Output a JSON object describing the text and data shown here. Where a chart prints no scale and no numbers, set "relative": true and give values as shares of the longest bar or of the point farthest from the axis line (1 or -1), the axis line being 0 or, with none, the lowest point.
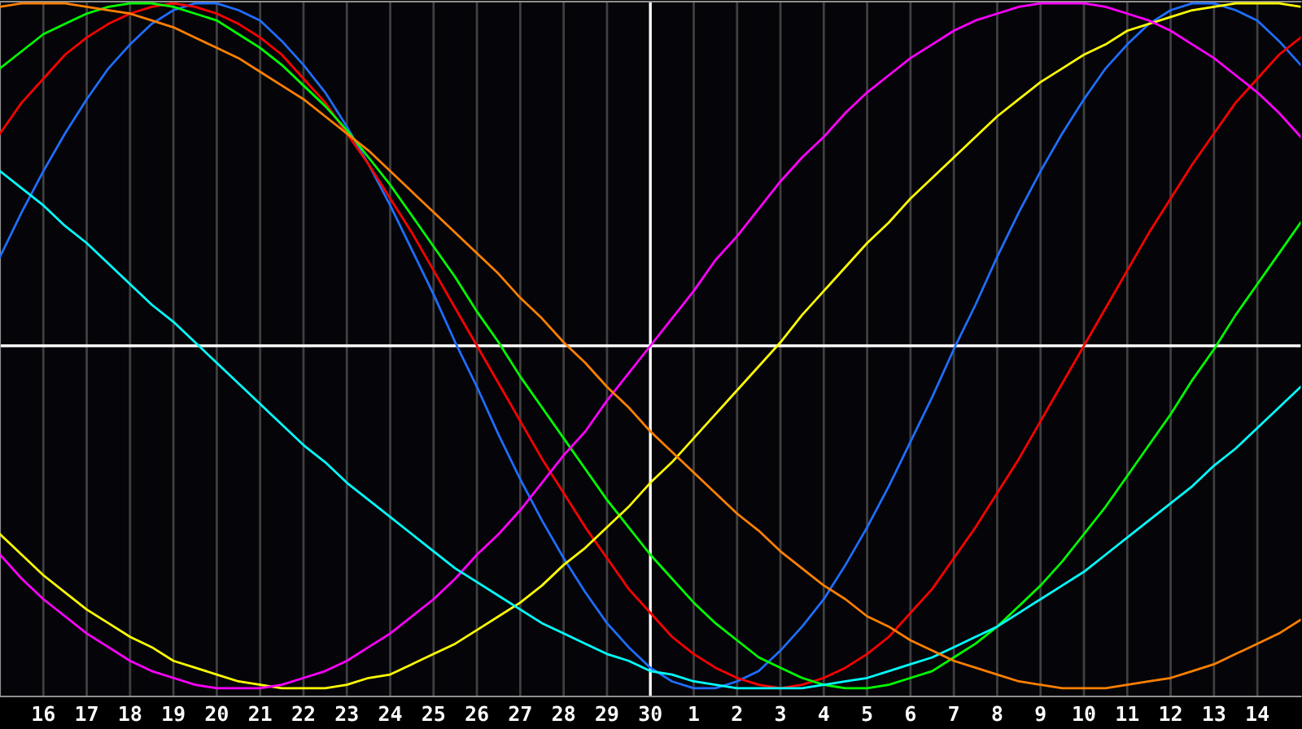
{
  "chart_data": {
    "type": "line",
    "relative": true,
    "grid": "x",
    "legend": false,
    "marker": "none",
    "line_style": "solid",
    "categories": [
      null,
      null,
      "16",
      null,
      "17",
      null,
      "18",
      null,
      "19",
      null,
      "20",
      null,
      "21",
      null,
      "22",
      null,
      "23",
      null,
      "24",
      null,
      "25",
      null,
      "26",
      null,
      "27",
      null,
      "28",
      null,
      "29",
      null,
      "30",
      null,
      "1",
      null,
      "2",
      null,
      "3",
      null,
      "4",
      null,
      "5",
      null,
      "6",
      null,
      "7",
      null,
      "8",
      null,
      "9",
      null,
      "10",
      null,
      "11",
      null,
      "12",
      null,
      "13",
      null,
      "14",
      null,
      null
    ],
    "tick_labels": "x",
    "ref_lines": [
      {
        "axis": "x",
        "value": "30",
        "color": "#ffffff",
        "line_style": "solid"
      },
      {
        "axis": "y",
        "value": 0,
        "color": "#ffffff",
        "line_style": "solid"
      }
    ],
    "series": [
      {
        "color": "#1e6eff",
        "values": [
          0.26,
          0.39,
          0.51,
          0.62,
          0.72,
          0.81,
          0.88,
          0.94,
          0.98,
          1.0,
          1.0,
          0.98,
          0.95,
          0.89,
          0.82,
          0.74,
          0.64,
          0.53,
          0.41,
          0.28,
          0.15,
          0.01,
          -0.12,
          -0.26,
          -0.39,
          -0.51,
          -0.62,
          -0.72,
          -0.81,
          -0.88,
          -0.94,
          -0.98,
          -1.0,
          -1.0,
          -0.98,
          -0.95,
          -0.89,
          -0.82,
          -0.74,
          -0.64,
          -0.53,
          -0.41,
          -0.28,
          -0.15,
          -0.01,
          0.12,
          0.26,
          0.39,
          0.51,
          0.62,
          0.72,
          0.81,
          0.88,
          0.94,
          0.98,
          1.0,
          1.0,
          0.98,
          0.95,
          0.89,
          0.82
        ]
      },
      {
        "color": "#ff0000",
        "values": [
          0.62,
          0.71,
          0.78,
          0.85,
          0.9,
          0.94,
          0.97,
          0.99,
          1.0,
          0.99,
          0.97,
          0.94,
          0.9,
          0.85,
          0.78,
          0.71,
          0.62,
          0.53,
          0.43,
          0.33,
          0.22,
          0.11,
          0.0,
          -0.11,
          -0.22,
          -0.33,
          -0.43,
          -0.53,
          -0.62,
          -0.71,
          -0.78,
          -0.85,
          -0.9,
          -0.94,
          -0.97,
          -0.99,
          -1.0,
          -0.99,
          -0.97,
          -0.94,
          -0.9,
          -0.85,
          -0.78,
          -0.71,
          -0.62,
          -0.53,
          -0.43,
          -0.33,
          -0.22,
          -0.11,
          0.0,
          0.11,
          0.22,
          0.33,
          0.43,
          0.53,
          0.62,
          0.71,
          0.78,
          0.85,
          0.9
        ]
      },
      {
        "color": "#00ff00",
        "values": [
          0.81,
          0.86,
          0.91,
          0.94,
          0.97,
          0.99,
          1.0,
          1.0,
          0.99,
          0.97,
          0.95,
          0.91,
          0.87,
          0.82,
          0.76,
          0.7,
          0.63,
          0.55,
          0.47,
          0.38,
          0.29,
          0.2,
          0.1,
          0.01,
          -0.09,
          -0.18,
          -0.27,
          -0.36,
          -0.45,
          -0.53,
          -0.61,
          -0.68,
          -0.75,
          -0.81,
          -0.86,
          -0.91,
          -0.94,
          -0.97,
          -0.99,
          -1.0,
          -1.0,
          -0.99,
          -0.97,
          -0.95,
          -0.91,
          -0.87,
          -0.82,
          -0.76,
          -0.7,
          -0.63,
          -0.55,
          -0.47,
          -0.38,
          -0.29,
          -0.2,
          -0.1,
          -0.01,
          0.09,
          0.18,
          0.27,
          0.36
        ]
      },
      {
        "color": "#ffff00",
        "values": [
          -0.55,
          -0.61,
          -0.67,
          -0.72,
          -0.77,
          -0.81,
          -0.85,
          -0.88,
          -0.92,
          -0.94,
          -0.96,
          -0.98,
          -0.99,
          -1.0,
          -1.0,
          -1.0,
          -0.99,
          -0.97,
          -0.96,
          -0.93,
          -0.9,
          -0.87,
          -0.83,
          -0.79,
          -0.75,
          -0.7,
          -0.64,
          -0.59,
          -0.53,
          -0.47,
          -0.4,
          -0.34,
          -0.27,
          -0.2,
          -0.13,
          -0.06,
          0.01,
          0.09,
          0.16,
          0.23,
          0.3,
          0.36,
          0.43,
          0.49,
          0.55,
          0.61,
          0.67,
          0.72,
          0.77,
          0.81,
          0.85,
          0.88,
          0.92,
          0.94,
          0.96,
          0.98,
          0.99,
          1.0,
          1.0,
          1.0,
          0.99
        ]
      },
      {
        "color": "#ff00ff",
        "values": [
          -0.61,
          -0.68,
          -0.74,
          -0.79,
          -0.84,
          -0.88,
          -0.92,
          -0.95,
          -0.97,
          -0.99,
          -1.0,
          -1.0,
          -1.0,
          -0.99,
          -0.97,
          -0.95,
          -0.92,
          -0.88,
          -0.84,
          -0.79,
          -0.74,
          -0.68,
          -0.61,
          -0.55,
          -0.48,
          -0.4,
          -0.32,
          -0.25,
          -0.16,
          -0.08,
          0.0,
          0.08,
          0.16,
          0.25,
          0.32,
          0.4,
          0.48,
          0.55,
          0.61,
          0.68,
          0.74,
          0.79,
          0.84,
          0.88,
          0.92,
          0.95,
          0.97,
          0.99,
          1.0,
          1.0,
          1.0,
          0.99,
          0.97,
          0.95,
          0.92,
          0.88,
          0.84,
          0.79,
          0.74,
          0.68,
          0.61
        ]
      },
      {
        "color": "#00ffff",
        "values": [
          0.51,
          0.46,
          0.41,
          0.35,
          0.3,
          0.24,
          0.18,
          0.12,
          0.07,
          0.01,
          -0.05,
          -0.11,
          -0.17,
          -0.23,
          -0.29,
          -0.34,
          -0.4,
          -0.45,
          -0.5,
          -0.55,
          -0.6,
          -0.65,
          -0.69,
          -0.73,
          -0.77,
          -0.81,
          -0.84,
          -0.87,
          -0.9,
          -0.92,
          -0.95,
          -0.96,
          -0.98,
          -0.99,
          -1.0,
          -1.0,
          -1.0,
          -1.0,
          -0.99,
          -0.98,
          -0.97,
          -0.95,
          -0.93,
          -0.91,
          -0.88,
          -0.85,
          -0.82,
          -0.78,
          -0.74,
          -0.7,
          -0.66,
          -0.61,
          -0.56,
          -0.51,
          -0.46,
          -0.41,
          -0.35,
          -0.3,
          -0.24,
          -0.18,
          -0.12
        ]
      },
      {
        "color": "#ff8000",
        "values": [
          0.99,
          1.0,
          1.0,
          1.0,
          0.99,
          0.98,
          0.97,
          0.95,
          0.93,
          0.9,
          0.87,
          0.84,
          0.8,
          0.76,
          0.72,
          0.67,
          0.62,
          0.57,
          0.51,
          0.45,
          0.39,
          0.33,
          0.27,
          0.21,
          0.14,
          0.08,
          0.01,
          -0.05,
          -0.12,
          -0.18,
          -0.25,
          -0.31,
          -0.37,
          -0.43,
          -0.49,
          -0.54,
          -0.6,
          -0.65,
          -0.7,
          -0.74,
          -0.79,
          -0.82,
          -0.86,
          -0.89,
          -0.92,
          -0.94,
          -0.96,
          -0.98,
          -0.99,
          -1.0,
          -1.0,
          -1.0,
          -0.99,
          -0.98,
          -0.97,
          -0.95,
          -0.93,
          -0.9,
          -0.87,
          -0.84,
          -0.8
        ]
      }
    ]
  }
}
